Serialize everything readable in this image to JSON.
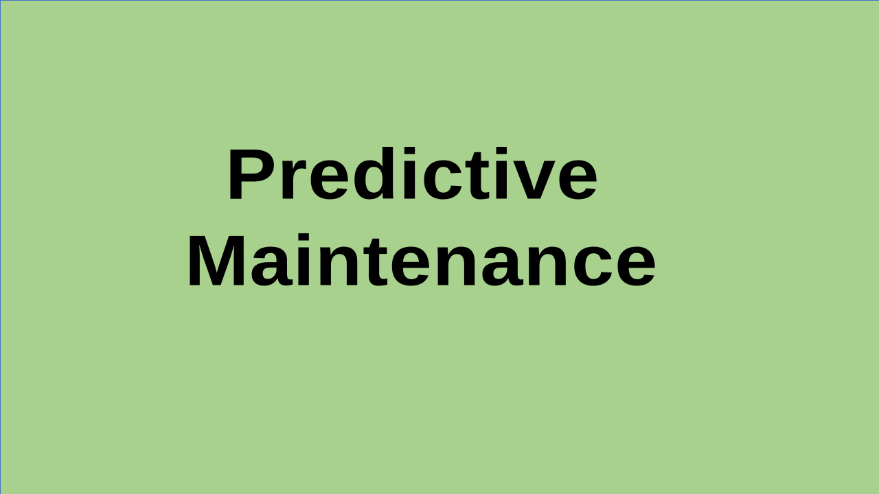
{
  "slide": {
    "background_color": "#A9D18E",
    "title_color": "#000000",
    "title_lines": [
      "Predictive",
      "Maintenance"
    ]
  }
}
